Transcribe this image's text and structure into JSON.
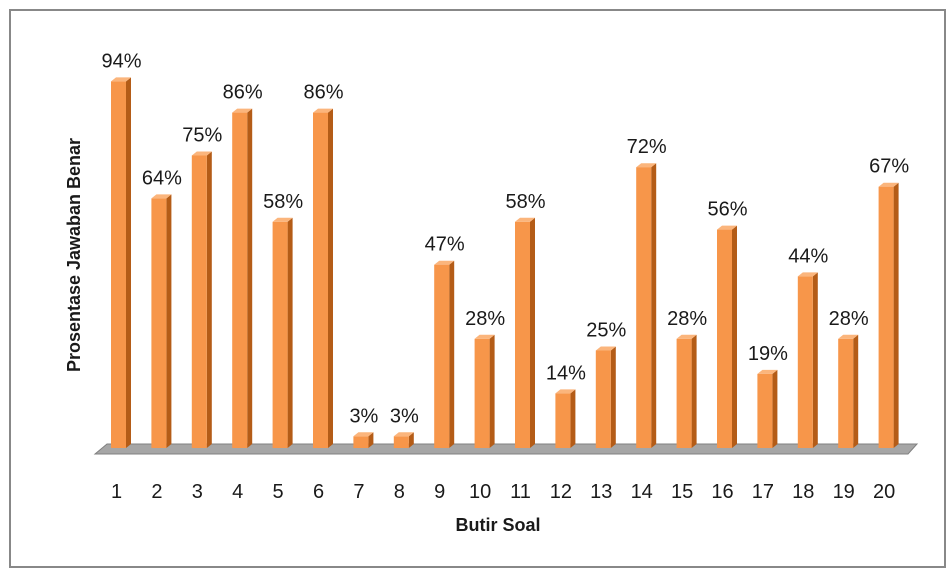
{
  "chart_data": {
    "type": "bar",
    "title": "",
    "xlabel": "Butir Soal",
    "ylabel": "Prosentase Jawaban Benar",
    "categories": [
      "1",
      "2",
      "3",
      "4",
      "5",
      "6",
      "7",
      "8",
      "9",
      "10",
      "11",
      "12",
      "13",
      "14",
      "15",
      "16",
      "17",
      "18",
      "19",
      "20"
    ],
    "values": [
      94,
      64,
      75,
      86,
      58,
      86,
      3,
      3,
      47,
      28,
      58,
      14,
      25,
      72,
      28,
      56,
      19,
      44,
      28,
      67
    ],
    "value_labels": [
      "94%",
      "64%",
      "75%",
      "86%",
      "58%",
      "86%",
      "3%",
      "3%",
      "47%",
      "28%",
      "58%",
      "14%",
      "25%",
      "72%",
      "28%",
      "56%",
      "19%",
      "44%",
      "28%",
      "67%"
    ],
    "ylim": [
      0,
      100
    ],
    "grid": false,
    "legend": "none",
    "style": "3d-column"
  },
  "colors": {
    "bar_front": "#f7964a",
    "bar_side": "#b45c17",
    "bar_top": "#fbb57c",
    "floor": "#a6a6a6",
    "floor_edge": "#808080",
    "border": "#888888"
  }
}
